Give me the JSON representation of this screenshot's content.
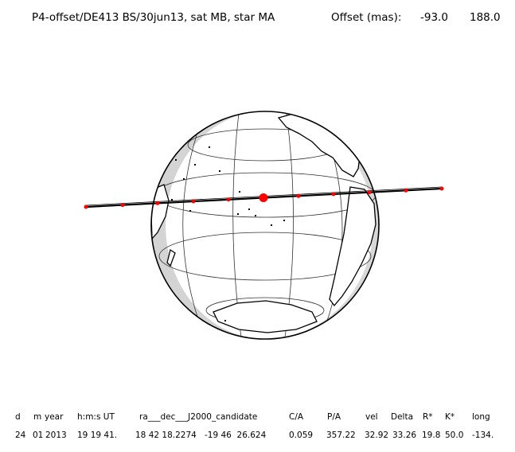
{
  "header": {
    "title": "P4-offset/DE413 BS/30jun13, sat MB, star MA",
    "offset_label": "Offset (mas):",
    "offset_x": "-93.0",
    "offset_y": "188.0"
  },
  "columns": [
    "d",
    "m",
    "year",
    "h:m:s UT",
    "ra___dec___J2000_candidate",
    "C/A",
    "P/A",
    "vel",
    "Delta",
    "R*",
    "K*",
    "long"
  ],
  "values": [
    "24",
    "01",
    "2013",
    "19 19 41.",
    "18 42 18.2274",
    "-19 46  26.624",
    "0.059",
    "357.22",
    "32.92",
    "33.26",
    "19.8",
    "50.0",
    "-134."
  ],
  "colors": {
    "track": "#000000",
    "ticks": "#ff0000",
    "night": "#d4d4d4",
    "coast": "#000000",
    "grid": "#333333"
  }
}
